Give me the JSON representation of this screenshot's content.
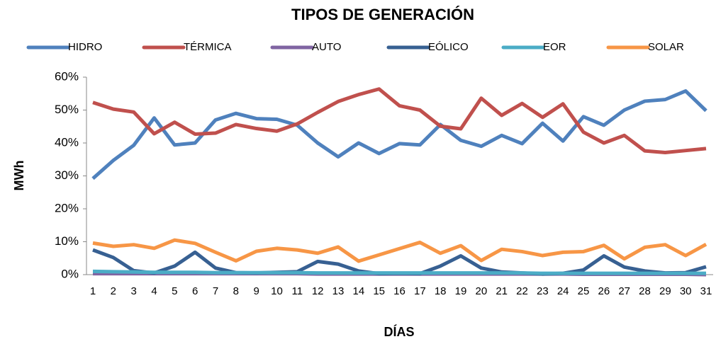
{
  "chart_data": {
    "type": "line",
    "title": "TIPOS DE GENERACIÓN",
    "x_label": "DÍAS",
    "y_label": "MWh",
    "categories": [
      "1",
      "2",
      "3",
      "4",
      "5",
      "6",
      "7",
      "8",
      "9",
      "10",
      "11",
      "12",
      "13",
      "14",
      "15",
      "16",
      "17",
      "18",
      "19",
      "20",
      "21",
      "22",
      "23",
      "24",
      "25",
      "26",
      "27",
      "28",
      "29",
      "30",
      "31"
    ],
    "ylim": [
      0,
      60
    ],
    "yticks": [
      {
        "value": 0,
        "label": "0%"
      },
      {
        "value": 10,
        "label": "10%"
      },
      {
        "value": 20,
        "label": "20%"
      },
      {
        "value": 30,
        "label": "30%"
      },
      {
        "value": 40,
        "label": "40%"
      },
      {
        "value": 50,
        "label": "50%"
      },
      {
        "value": 60,
        "label": "60%"
      }
    ],
    "grid": false,
    "legend": "top",
    "series": [
      {
        "name": "HIDRO",
        "color": "#4f81bd",
        "values": [
          29.2,
          34.7,
          39.3,
          47.6,
          39.4,
          40,
          47,
          49,
          47.4,
          47.2,
          45.4,
          40,
          35.8,
          40,
          36.8,
          39.8,
          39.4,
          45.6,
          40.8,
          39,
          42.3,
          39.8,
          46,
          40.6,
          48,
          45.4,
          50,
          52.7,
          53.2,
          55.8,
          49.8
        ]
      },
      {
        "name": "TÉRMICA",
        "color": "#c0504d",
        "values": [
          52.3,
          50.3,
          49.4,
          42.8,
          46.3,
          42.7,
          43,
          45.6,
          44.4,
          43.6,
          45.8,
          49.3,
          52.6,
          54.7,
          56.4,
          51.3,
          50,
          45.1,
          44.3,
          53.6,
          48.4,
          52,
          47.8,
          51.9,
          43.3,
          40,
          42.3,
          37.6,
          37.1,
          37.7,
          38.3
        ]
      },
      {
        "name": "AUTO",
        "color": "#8064a2",
        "values": [
          0.3,
          0.3,
          0.3,
          0.3,
          0.3,
          0.3,
          0.3,
          0.3,
          0.3,
          0.3,
          0.3,
          0.2,
          0.2,
          0.2,
          0.2,
          0.2,
          0.2,
          0.2,
          0.2,
          0.2,
          0.2,
          0.2,
          0.2,
          0.2,
          0.1,
          0.1,
          0.1,
          0.1,
          0.1,
          0.1,
          0
        ]
      },
      {
        "name": "EÓLICO",
        "color": "#376092",
        "values": [
          7.5,
          5.2,
          1.2,
          0.5,
          2.6,
          6.8,
          2,
          0.6,
          0.5,
          0.7,
          0.9,
          4,
          3.2,
          1.1,
          0.3,
          0.4,
          0.3,
          2.6,
          5.7,
          2,
          0.8,
          0.5,
          0.2,
          0.4,
          1.4,
          5.7,
          2.3,
          1.1,
          0.5,
          0.6,
          2.4
        ]
      },
      {
        "name": "EOR",
        "color": "#4bacc6",
        "values": [
          1,
          0.9,
          0.8,
          0.7,
          0.7,
          0.7,
          0.6,
          0.6,
          0.6,
          0.6,
          0.6,
          0.5,
          0.5,
          0.5,
          0.5,
          0.5,
          0.5,
          0.5,
          0.5,
          0.5,
          0.5,
          0.5,
          0.4,
          0.4,
          0.4,
          0.4,
          0.4,
          0.4,
          0.4,
          0.4,
          0.4
        ]
      },
      {
        "name": "SOLAR",
        "color": "#f79646",
        "values": [
          9.6,
          8.6,
          9.1,
          8,
          10.5,
          9.5,
          6.8,
          4.2,
          7.1,
          8,
          7.5,
          6.5,
          8.4,
          4.1,
          6,
          7.9,
          9.8,
          6.5,
          8.8,
          4.3,
          7.7,
          7,
          5.8,
          6.8,
          7,
          8.9,
          4.8,
          8.3,
          9.1,
          5.8,
          9.2
        ]
      }
    ]
  }
}
